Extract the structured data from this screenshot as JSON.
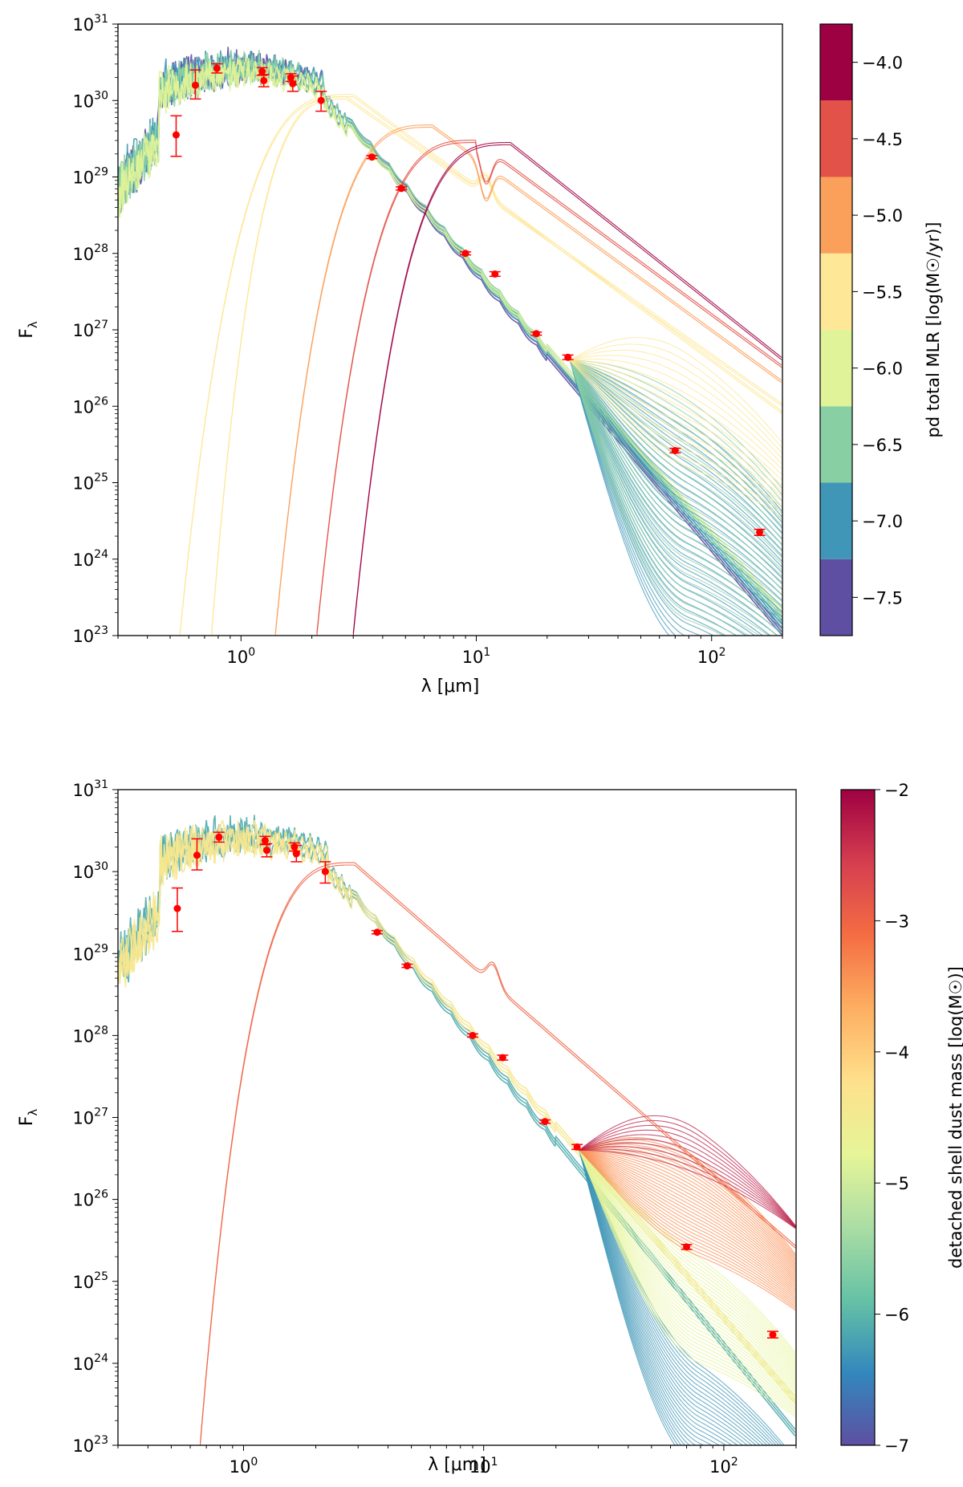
{
  "chart_data": [
    {
      "type": "line",
      "panel": "top",
      "xlabel": "λ [μm]",
      "ylabel": "Fλ",
      "xscale": "log",
      "yscale": "log",
      "xlim": [
        0.3,
        200
      ],
      "ylim_exp": [
        23,
        31
      ],
      "x_ticks": [
        {
          "value": 1,
          "label": "10",
          "exp": "0"
        },
        {
          "value": 10,
          "label": "10",
          "exp": "1"
        },
        {
          "value": 100,
          "label": "10",
          "exp": "2"
        }
      ],
      "y_ticks": [
        {
          "exp": 23,
          "label": "10",
          "sup": "23"
        },
        {
          "exp": 24,
          "label": "10",
          "sup": "24"
        },
        {
          "exp": 25,
          "label": "10",
          "sup": "25"
        },
        {
          "exp": 26,
          "label": "10",
          "sup": "26"
        },
        {
          "exp": 27,
          "label": "10",
          "sup": "27"
        },
        {
          "exp": 28,
          "label": "10",
          "sup": "28"
        },
        {
          "exp": 29,
          "label": "10",
          "sup": "29"
        },
        {
          "exp": 30,
          "label": "10",
          "sup": "30"
        },
        {
          "exp": 31,
          "label": "10",
          "sup": "31"
        }
      ],
      "colorbar": {
        "label": "pd total MLR [log(M☉/yr)]",
        "min": -7.75,
        "max": -3.75,
        "discrete": true,
        "bins": [
          {
            "from": -7.75,
            "to": -7.25,
            "color": "#5e4fa2"
          },
          {
            "from": -7.25,
            "to": -6.75,
            "color": "#3f96b7"
          },
          {
            "from": -6.75,
            "to": -6.25,
            "color": "#88cfa4"
          },
          {
            "from": -6.25,
            "to": -5.75,
            "color": "#e1f398"
          },
          {
            "from": -5.75,
            "to": -5.25,
            "color": "#fee797"
          },
          {
            "from": -5.25,
            "to": -4.75,
            "color": "#fba05b"
          },
          {
            "from": -4.75,
            "to": -4.25,
            "color": "#e25249"
          },
          {
            "from": -4.25,
            "to": -3.75,
            "color": "#9e0142"
          }
        ],
        "ticks": [
          {
            "value": -7.5,
            "label": "−7.5"
          },
          {
            "value": -7.0,
            "label": "−7.0"
          },
          {
            "value": -6.5,
            "label": "−6.5"
          },
          {
            "value": -6.0,
            "label": "−6.0"
          },
          {
            "value": -5.5,
            "label": "−5.5"
          },
          {
            "value": -5.0,
            "label": "−5.0"
          },
          {
            "value": -4.5,
            "label": "−4.5"
          },
          {
            "value": -4.0,
            "label": "−4.0"
          }
        ]
      },
      "observations": [
        {
          "x": 0.53,
          "y_exp": 29.55,
          "err_lo": 0.28,
          "err_hi": 0.25
        },
        {
          "x": 0.64,
          "y_exp": 30.2,
          "err_lo": 0.18,
          "err_hi": 0.2
        },
        {
          "x": 0.79,
          "y_exp": 30.42,
          "err_lo": 0.06,
          "err_hi": 0.06
        },
        {
          "x": 1.23,
          "y_exp": 30.38,
          "err_lo": 0.05,
          "err_hi": 0.05
        },
        {
          "x": 1.25,
          "y_exp": 30.26,
          "err_lo": 0.08,
          "err_hi": 0.08
        },
        {
          "x": 1.63,
          "y_exp": 30.3,
          "err_lo": 0.05,
          "err_hi": 0.05
        },
        {
          "x": 1.66,
          "y_exp": 30.22,
          "err_lo": 0.1,
          "err_hi": 0.1
        },
        {
          "x": 2.19,
          "y_exp": 30.0,
          "err_lo": 0.14,
          "err_hi": 0.12
        },
        {
          "x": 3.6,
          "y_exp": 29.26,
          "err_lo": 0.02,
          "err_hi": 0.02
        },
        {
          "x": 4.8,
          "y_exp": 28.85,
          "err_lo": 0.02,
          "err_hi": 0.02
        },
        {
          "x": 9.0,
          "y_exp": 28.0,
          "err_lo": 0.02,
          "err_hi": 0.02
        },
        {
          "x": 12.0,
          "y_exp": 27.73,
          "err_lo": 0.03,
          "err_hi": 0.03
        },
        {
          "x": 18.0,
          "y_exp": 26.95,
          "err_lo": 0.02,
          "err_hi": 0.02
        },
        {
          "x": 24.5,
          "y_exp": 26.64,
          "err_lo": 0.03,
          "err_hi": 0.03
        },
        {
          "x": 70.0,
          "y_exp": 25.42,
          "err_lo": 0.03,
          "err_hi": 0.03
        },
        {
          "x": 160.0,
          "y_exp": 24.35,
          "err_lo": 0.04,
          "err_hi": 0.04
        }
      ],
      "model_families": [
        {
          "kind": "stellar",
          "color_value": -7.6,
          "count": 3,
          "peak_x": 1.0,
          "peak_exp": 30.5,
          "tail_exp_at_200": 23.0
        },
        {
          "kind": "stellar",
          "color_value": -7.0,
          "count": 3,
          "peak_x": 1.0,
          "peak_exp": 30.5,
          "tail_exp_at_200": 23.1
        },
        {
          "kind": "stellar",
          "color_value": -6.5,
          "count": 3,
          "peak_x": 1.0,
          "peak_exp": 30.48,
          "tail_exp_at_200": 23.2
        },
        {
          "kind": "stellar",
          "color_value": -6.0,
          "count": 2,
          "peak_x": 1.0,
          "peak_exp": 30.45,
          "tail_exp_at_200": 23.3
        },
        {
          "kind": "far_ir_bump",
          "color_value": -7.2,
          "count": 35,
          "bump_x": 45,
          "bump_exp_range": [
            23.1,
            26.3
          ]
        },
        {
          "kind": "far_ir_bump",
          "color_value": -6.4,
          "count": 30,
          "bump_x": 45,
          "bump_exp_range": [
            23.5,
            26.6
          ]
        },
        {
          "kind": "far_ir_bump",
          "color_value": -5.6,
          "count": 15,
          "bump_x": 45,
          "bump_exp_range": [
            25.5,
            27.2
          ]
        },
        {
          "kind": "warm_shell",
          "color_value": -5.6,
          "count": 2,
          "onset_x": 0.55,
          "peak_x": 3.0,
          "peak_exp": 30.05,
          "tail_exp_at_200": 25.9
        },
        {
          "kind": "warm_shell",
          "color_value": -5.3,
          "count": 2,
          "onset_x": 0.75,
          "peak_x": 2.8,
          "peak_exp": 30.02,
          "tail_exp_at_200": 26.0
        },
        {
          "kind": "cool_shell",
          "color_value": -5.1,
          "count": 2,
          "onset_x": 1.4,
          "peak_x": 6.5,
          "peak_exp": 29.65,
          "tail_exp_at_200": 26.3
        },
        {
          "kind": "cool_shell",
          "color_value": -4.6,
          "count": 2,
          "onset_x": 2.1,
          "peak_x": 10.0,
          "peak_exp": 29.45,
          "tail_exp_at_200": 26.5
        },
        {
          "kind": "cold_shell",
          "color_value": -4.0,
          "count": 2,
          "onset_x": 3.0,
          "peak_x": 14.0,
          "peak_exp": 29.42,
          "tail_exp_at_200": 26.6
        }
      ]
    },
    {
      "type": "line",
      "panel": "bottom",
      "xlabel": "λ [μm]",
      "ylabel": "Fλ",
      "xscale": "log",
      "yscale": "log",
      "xlim": [
        0.3,
        200
      ],
      "ylim_exp": [
        23,
        31
      ],
      "x_ticks": [
        {
          "value": 1,
          "label": "10",
          "exp": "0"
        },
        {
          "value": 10,
          "label": "10",
          "exp": "1"
        },
        {
          "value": 100,
          "label": "10",
          "exp": "2"
        }
      ],
      "y_ticks": [
        {
          "exp": 23,
          "label": "10",
          "sup": "23"
        },
        {
          "exp": 24,
          "label": "10",
          "sup": "24"
        },
        {
          "exp": 25,
          "label": "10",
          "sup": "25"
        },
        {
          "exp": 26,
          "label": "10",
          "sup": "26"
        },
        {
          "exp": 27,
          "label": "10",
          "sup": "27"
        },
        {
          "exp": 28,
          "label": "10",
          "sup": "28"
        },
        {
          "exp": 29,
          "label": "10",
          "sup": "29"
        },
        {
          "exp": 30,
          "label": "10",
          "sup": "30"
        },
        {
          "exp": 31,
          "label": "10",
          "sup": "31"
        }
      ],
      "colorbar": {
        "label": "detached shell dust mass [log(M☉)]",
        "min": -7,
        "max": -2,
        "discrete": false,
        "stops": [
          "#5e4fa2",
          "#3288bd",
          "#66c2a5",
          "#abdda4",
          "#e6f598",
          "#fee08b",
          "#fdae61",
          "#f46d43",
          "#d53e4f",
          "#9e0142"
        ],
        "ticks": [
          {
            "value": -7,
            "label": "−7"
          },
          {
            "value": -6,
            "label": "−6"
          },
          {
            "value": -5,
            "label": "−5"
          },
          {
            "value": -4,
            "label": "−4"
          },
          {
            "value": -3,
            "label": "−3"
          },
          {
            "value": -2,
            "label": "−2"
          }
        ]
      },
      "observations": [
        {
          "x": 0.53,
          "y_exp": 29.55,
          "err_lo": 0.28,
          "err_hi": 0.25
        },
        {
          "x": 0.64,
          "y_exp": 30.2,
          "err_lo": 0.18,
          "err_hi": 0.2
        },
        {
          "x": 0.79,
          "y_exp": 30.42,
          "err_lo": 0.06,
          "err_hi": 0.06
        },
        {
          "x": 1.23,
          "y_exp": 30.38,
          "err_lo": 0.05,
          "err_hi": 0.05
        },
        {
          "x": 1.25,
          "y_exp": 30.26,
          "err_lo": 0.08,
          "err_hi": 0.08
        },
        {
          "x": 1.63,
          "y_exp": 30.3,
          "err_lo": 0.05,
          "err_hi": 0.05
        },
        {
          "x": 1.66,
          "y_exp": 30.22,
          "err_lo": 0.1,
          "err_hi": 0.1
        },
        {
          "x": 2.19,
          "y_exp": 30.0,
          "err_lo": 0.14,
          "err_hi": 0.12
        },
        {
          "x": 3.6,
          "y_exp": 29.26,
          "err_lo": 0.02,
          "err_hi": 0.02
        },
        {
          "x": 4.8,
          "y_exp": 28.85,
          "err_lo": 0.02,
          "err_hi": 0.02
        },
        {
          "x": 9.0,
          "y_exp": 28.0,
          "err_lo": 0.02,
          "err_hi": 0.02
        },
        {
          "x": 12.0,
          "y_exp": 27.73,
          "err_lo": 0.03,
          "err_hi": 0.03
        },
        {
          "x": 18.0,
          "y_exp": 26.95,
          "err_lo": 0.02,
          "err_hi": 0.02
        },
        {
          "x": 24.5,
          "y_exp": 26.64,
          "err_lo": 0.03,
          "err_hi": 0.03
        },
        {
          "x": 70.0,
          "y_exp": 25.42,
          "err_lo": 0.03,
          "err_hi": 0.03
        },
        {
          "x": 160.0,
          "y_exp": 24.35,
          "err_lo": 0.04,
          "err_hi": 0.04
        }
      ],
      "model_families": [
        {
          "kind": "stellar",
          "color_value": -6.1,
          "count": 3,
          "peak_x": 1.0,
          "peak_exp": 30.5,
          "tail_exp_at_200": 23.1
        },
        {
          "kind": "stellar",
          "color_value": -4.4,
          "count": 3,
          "peak_x": 1.0,
          "peak_exp": 30.46,
          "tail_exp_at_200": 23.5
        },
        {
          "kind": "far_ir_bump",
          "color_value": -6.3,
          "count": 25,
          "bump_x": 45,
          "bump_exp_range": [
            23.0,
            24.5
          ]
        },
        {
          "kind": "far_ir_bump",
          "color_value": -4.8,
          "count": 30,
          "bump_x": 45,
          "bump_exp_range": [
            24.3,
            25.8
          ]
        },
        {
          "kind": "far_ir_bump",
          "color_value": -3.4,
          "count": 30,
          "bump_x": 45,
          "bump_exp_range": [
            25.6,
            27.0
          ]
        },
        {
          "kind": "far_ir_bump",
          "color_value": -2.3,
          "count": 10,
          "bump_x": 45,
          "bump_exp_range": [
            26.6,
            27.35
          ]
        },
        {
          "kind": "warm_shell",
          "color_value": -3.0,
          "count": 2,
          "onset_x": 0.66,
          "peak_x": 2.9,
          "peak_exp": 30.08,
          "tail_exp_at_200": 25.4
        }
      ]
    }
  ]
}
